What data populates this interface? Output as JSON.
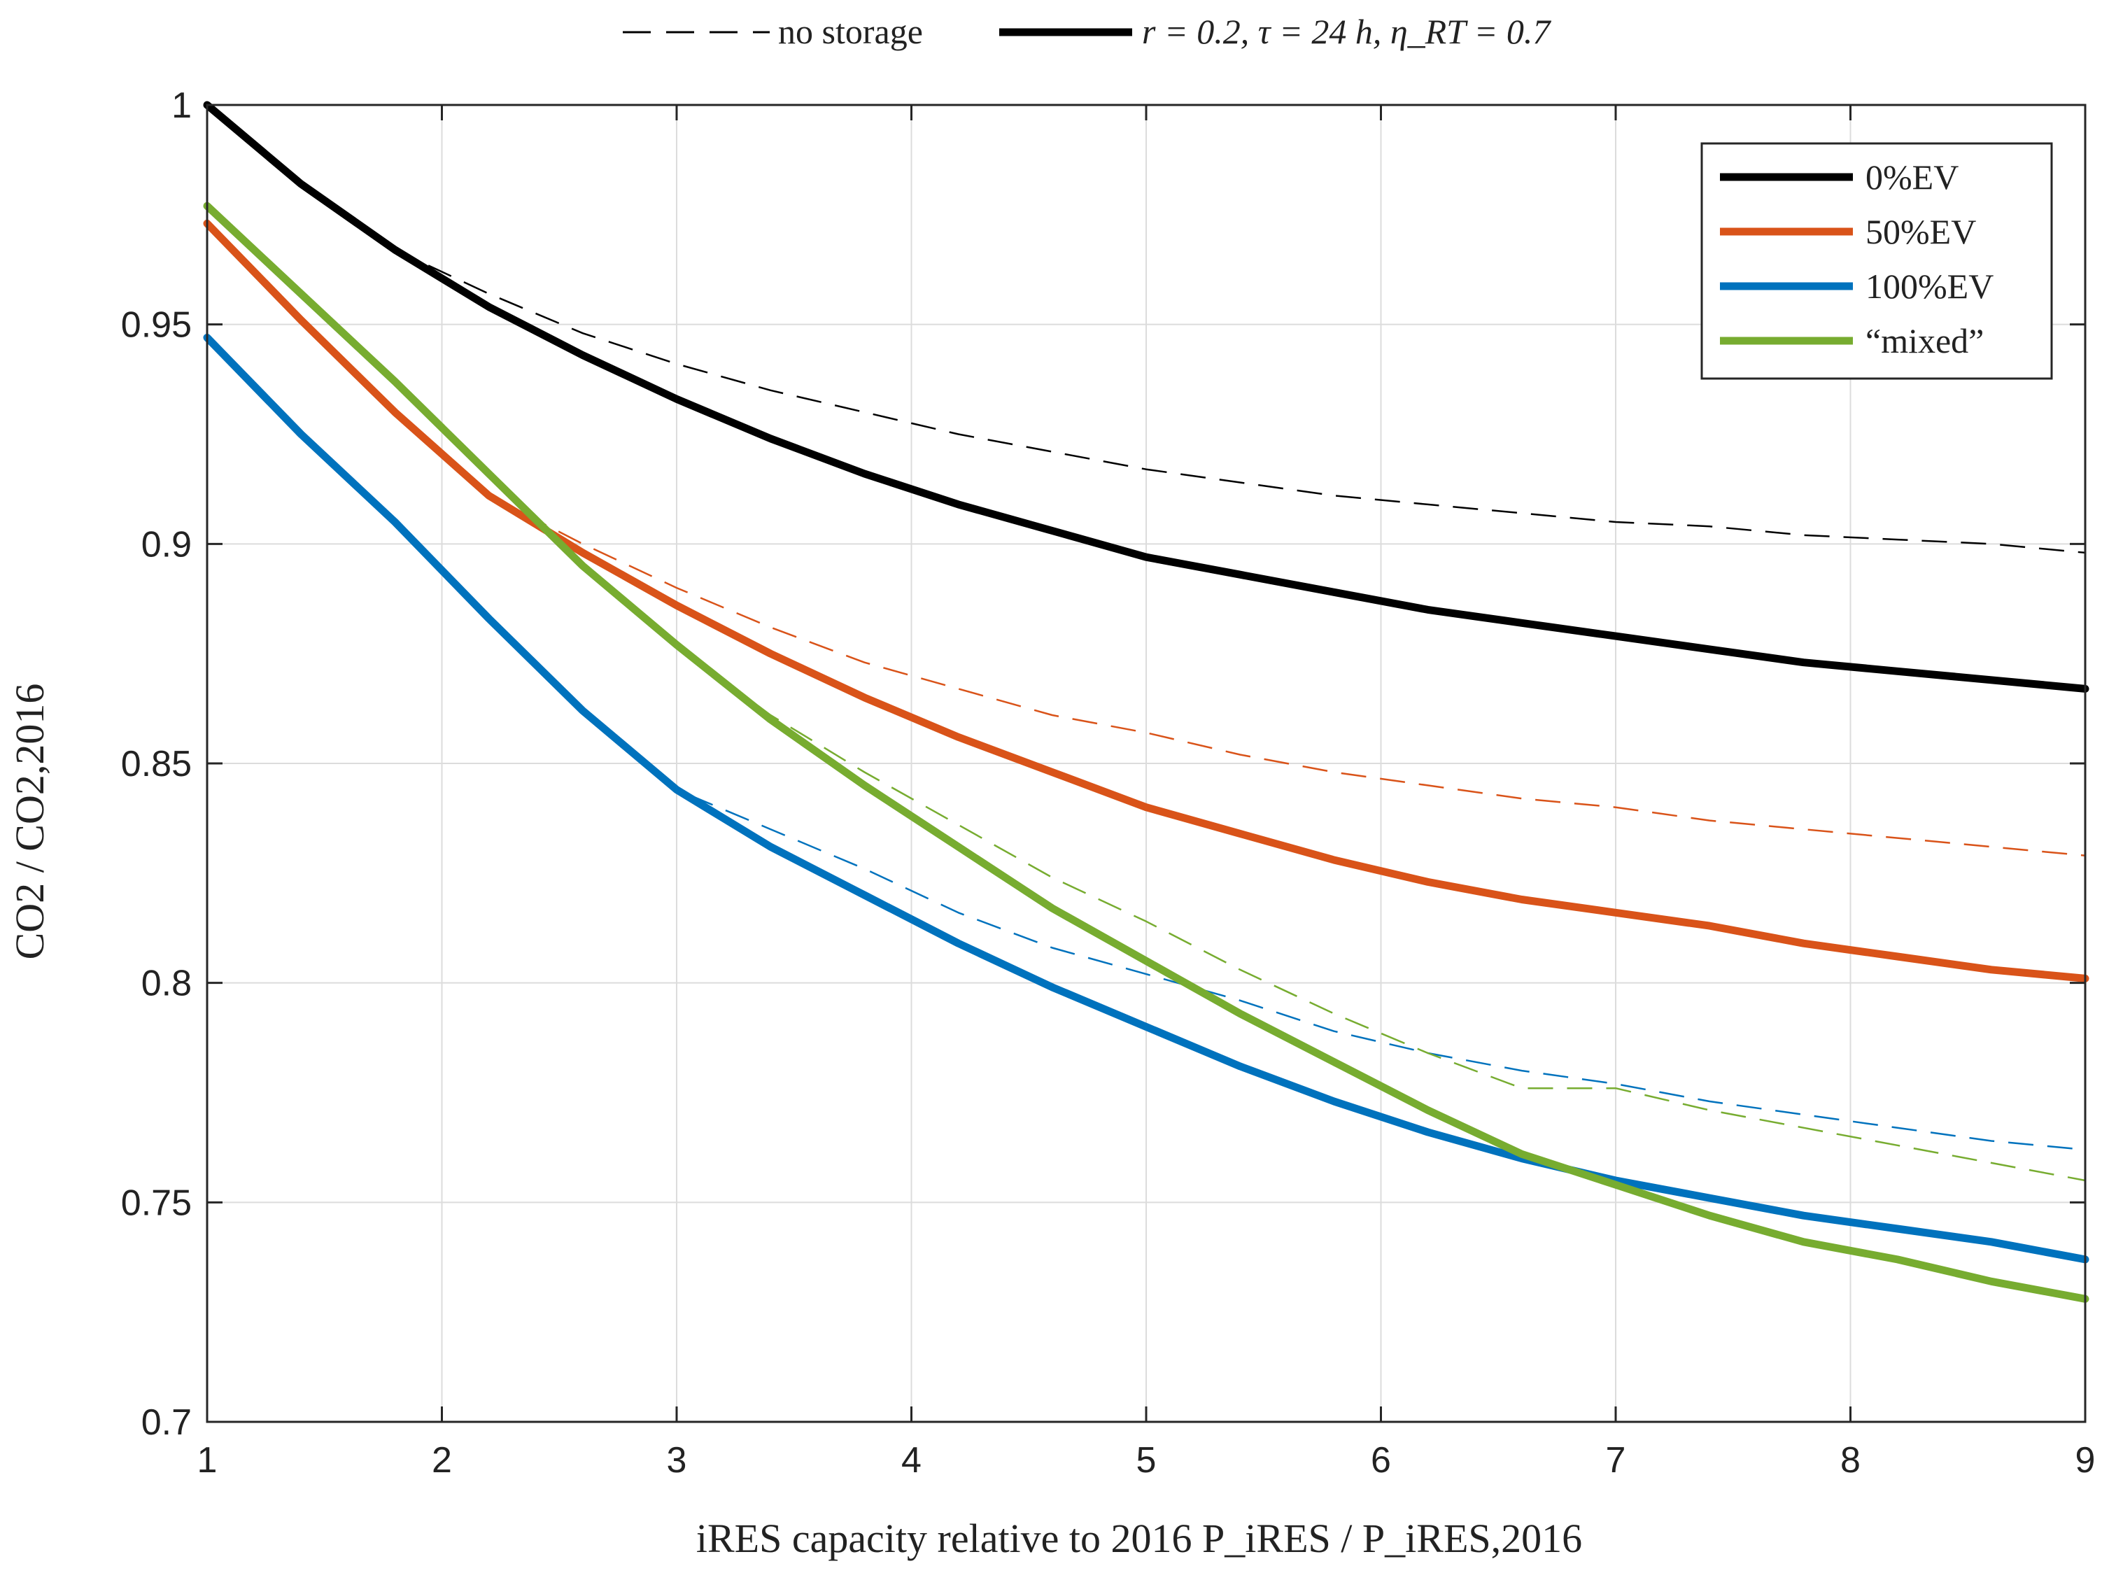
{
  "chart_data": {
    "type": "line",
    "title": "",
    "xlabel": "iRES capacity relative to 2016 P_iRES / P_iRES,2016",
    "ylabel": "CO2 / CO2,2016",
    "xlim": [
      1,
      9
    ],
    "ylim": [
      0.7,
      1.0
    ],
    "xticks": [
      "1",
      "2",
      "3",
      "4",
      "5",
      "6",
      "7",
      "8",
      "9"
    ],
    "yticks": [
      "0.7",
      "0.75",
      "0.8",
      "0.85",
      "0.9",
      "0.95",
      "1"
    ],
    "grid": true,
    "top_legend": {
      "dashed_label": "no storage",
      "solid_label": "r = 0.2, τ = 24 h, η_RT = 0.7"
    },
    "legend_position": "top-right",
    "x": [
      1,
      1.4,
      1.8,
      2.2,
      2.6,
      3,
      3.4,
      3.8,
      4.2,
      4.6,
      5,
      5.4,
      5.8,
      6.2,
      6.6,
      7,
      7.4,
      7.8,
      8.2,
      8.6,
      9
    ],
    "series": [
      {
        "name": "0%EV",
        "color": "#000000",
        "storage": [
          1.0,
          0.982,
          0.967,
          0.954,
          0.943,
          0.933,
          0.924,
          0.916,
          0.909,
          0.903,
          0.897,
          0.893,
          0.889,
          0.885,
          0.882,
          0.879,
          0.876,
          0.873,
          0.871,
          0.869,
          0.867
        ],
        "no_storage": [
          1.0,
          0.982,
          0.967,
          0.957,
          0.948,
          0.941,
          0.935,
          0.93,
          0.925,
          0.921,
          0.917,
          0.914,
          0.911,
          0.909,
          0.907,
          0.905,
          0.904,
          0.902,
          0.901,
          0.9,
          0.898
        ]
      },
      {
        "name": "50%EV",
        "color": "#d95319",
        "storage": [
          0.973,
          0.951,
          0.93,
          0.911,
          0.898,
          0.886,
          0.875,
          0.865,
          0.856,
          0.848,
          0.84,
          0.834,
          0.828,
          0.823,
          0.819,
          0.816,
          0.813,
          0.809,
          0.806,
          0.803,
          0.801
        ],
        "no_storage": [
          0.973,
          0.951,
          0.93,
          0.911,
          0.9,
          0.89,
          0.881,
          0.873,
          0.867,
          0.861,
          0.857,
          0.852,
          0.848,
          0.845,
          0.842,
          0.84,
          0.837,
          0.835,
          0.833,
          0.831,
          0.829
        ]
      },
      {
        "name": "100%EV",
        "color": "#0072bd",
        "storage": [
          0.947,
          0.925,
          0.905,
          0.883,
          0.862,
          0.844,
          0.831,
          0.82,
          0.809,
          0.799,
          0.79,
          0.781,
          0.773,
          0.766,
          0.76,
          0.755,
          0.751,
          0.747,
          0.744,
          0.741,
          0.737
        ],
        "no_storage": [
          0.947,
          0.925,
          0.905,
          0.883,
          0.862,
          0.844,
          0.835,
          0.826,
          0.816,
          0.808,
          0.802,
          0.796,
          0.789,
          0.784,
          0.78,
          0.777,
          0.773,
          0.77,
          0.767,
          0.764,
          0.762
        ]
      },
      {
        "name": "“mixed”",
        "color": "#77ac30",
        "storage": [
          0.977,
          0.957,
          0.937,
          0.916,
          0.895,
          0.877,
          0.86,
          0.845,
          0.831,
          0.817,
          0.805,
          0.793,
          0.782,
          0.771,
          0.761,
          0.754,
          0.747,
          0.741,
          0.737,
          0.732,
          0.728
        ],
        "no_storage": [
          0.977,
          0.957,
          0.937,
          0.916,
          0.895,
          0.877,
          0.861,
          0.848,
          0.836,
          0.824,
          0.814,
          0.803,
          0.793,
          0.784,
          0.776,
          0.776,
          0.771,
          0.767,
          0.763,
          0.759,
          0.755
        ]
      }
    ]
  }
}
